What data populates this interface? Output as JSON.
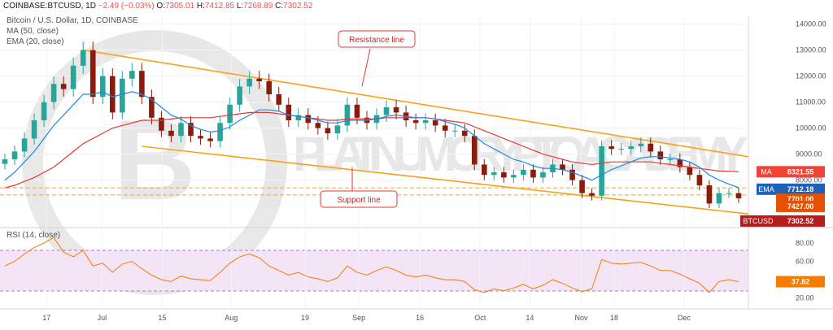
{
  "header": {
    "symbol": "COINBASE:BTCUSD, 1D",
    "change": "−2.49 (−0.03%)",
    "o_label": "O:",
    "o": "7305.01",
    "h_label": "H:",
    "h": "7412.85",
    "l_label": "L:",
    "l": "7268.89",
    "c_label": "C:",
    "c": "7302.52"
  },
  "legend": {
    "title": "Bitcoin / U.S. Dollar, 1D, COINBASE",
    "ma": "MA (50, close)",
    "ema": "EMA (20, close)",
    "rsi": "RSI (14, close)"
  },
  "watermark": "PLATINUM CRYPTO ACADEMY",
  "colors": {
    "up": "#26a69a",
    "down": "#ef5350",
    "candle_body": "#8a1c0e",
    "trendline": "#f7a21b",
    "ma": "#e53935",
    "ema": "#1e88e5",
    "rsi": "#f57c00",
    "rsi_band": "#f3e5f5",
    "ma_tag": "#f44336",
    "ema_tag": "#1e62b8",
    "price_tag": "#e65100",
    "btc_tag": "#b71c1c"
  },
  "chart_data": {
    "type": "line",
    "title": "Bitcoin / U.S. Dollar, 1D, COINBASE",
    "price_axis": {
      "ticks": [
        "14000.00",
        "13000.00",
        "12000.00",
        "11000.00",
        "10000.00",
        "9000.00",
        "8000.00"
      ],
      "ylim": [
        6300,
        14300
      ]
    },
    "x_ticks": [
      "17",
      "Jul",
      "15",
      "Aug",
      "19",
      "Sep",
      "16",
      "Oct",
      "14",
      "Nov",
      "18",
      "Dec"
    ],
    "price_tags": [
      {
        "label": "MA",
        "value": "8321.55"
      },
      {
        "label": "EMA",
        "value": "7712.18"
      },
      {
        "label": "",
        "value": "7701.00"
      },
      {
        "label": "",
        "value": "7427.00"
      },
      {
        "label": "BTCUSD",
        "value": "7302.52"
      }
    ],
    "annotations": [
      {
        "text": "Resistance line"
      },
      {
        "text": "Support line"
      }
    ],
    "series": [
      {
        "name": "BTCUSD close",
        "values": [
          8800,
          9100,
          9600,
          10300,
          11000,
          11700,
          11500,
          12400,
          13000,
          11200,
          12000,
          10600,
          11900,
          12200,
          11200,
          10400,
          9900,
          9700,
          10200,
          9700,
          9600,
          9500,
          10200,
          10900,
          11600,
          11900,
          11800,
          11300,
          10900,
          10300,
          10500,
          10200,
          10000,
          9800,
          10100,
          10900,
          10400,
          10200,
          10500,
          10800,
          10600,
          10300,
          10200,
          10300,
          10100,
          9900,
          9900,
          9700,
          8600,
          8200,
          8300,
          8100,
          8200,
          8400,
          8100,
          8300,
          8600,
          8400,
          8000,
          7500,
          7400,
          9300,
          9200,
          9200,
          9300,
          9400,
          9100,
          8800,
          8800,
          8500,
          8200,
          7800,
          7100,
          7500,
          7500,
          7302
        ]
      },
      {
        "name": "MA (50, close)",
        "values": [
          7700,
          7800,
          7950,
          8100,
          8300,
          8500,
          8800,
          9100,
          9400,
          9600,
          9800,
          10000,
          10100,
          10200,
          10300,
          10300,
          10300,
          10350,
          10400,
          10400,
          10400,
          10400,
          10450,
          10500,
          10550,
          10600,
          10600,
          10600,
          10550,
          10500,
          10450,
          10400,
          10350,
          10300,
          10300,
          10350,
          10350,
          10350,
          10350,
          10400,
          10400,
          10400,
          10400,
          10400,
          10350,
          10300,
          10250,
          10200,
          10050,
          9900,
          9750,
          9600,
          9450,
          9300,
          9150,
          9000,
          8900,
          8800,
          8700,
          8650,
          8600,
          8650,
          8700,
          8700,
          8700,
          8700,
          8700,
          8650,
          8600,
          8550,
          8500,
          8450,
          8400,
          8350,
          8340,
          8321
        ]
      },
      {
        "name": "EMA (20, close)",
        "values": [
          8000,
          8300,
          8700,
          9100,
          9600,
          10100,
          10500,
          10900,
          11300,
          11300,
          11400,
          11200,
          11300,
          11400,
          11300,
          11100,
          10800,
          10500,
          10350,
          10100,
          9950,
          9850,
          9900,
          10050,
          10300,
          10500,
          10700,
          10700,
          10650,
          10500,
          10450,
          10400,
          10300,
          10200,
          10200,
          10300,
          10300,
          10300,
          10350,
          10450,
          10500,
          10450,
          10400,
          10400,
          10350,
          10250,
          10150,
          10000,
          9700,
          9400,
          9200,
          9000,
          8800,
          8700,
          8550,
          8450,
          8450,
          8400,
          8300,
          8150,
          8000,
          8200,
          8400,
          8550,
          8700,
          8850,
          8900,
          8900,
          8850,
          8800,
          8700,
          8500,
          8200,
          8000,
          7850,
          7712
        ]
      },
      {
        "name": "RSI (14, close)",
        "values": [
          55,
          60,
          68,
          75,
          80,
          86,
          70,
          65,
          72,
          55,
          58,
          48,
          57,
          60,
          52,
          45,
          40,
          38,
          44,
          41,
          40,
          39,
          48,
          58,
          65,
          68,
          64,
          55,
          50,
          45,
          48,
          43,
          41,
          38,
          42,
          55,
          48,
          45,
          50,
          54,
          50,
          45,
          43,
          45,
          42,
          40,
          40,
          38,
          29,
          26,
          30,
          28,
          31,
          35,
          30,
          34,
          40,
          36,
          31,
          27,
          30,
          62,
          58,
          57,
          58,
          59,
          55,
          50,
          50,
          46,
          41,
          36,
          26,
          38,
          40,
          37.82
        ]
      }
    ],
    "rsi_axis": {
      "ticks": [
        "80.00",
        "60.00",
        "40.00",
        "20.00"
      ],
      "ylim": [
        10,
        95
      ],
      "current": "37.82"
    }
  }
}
